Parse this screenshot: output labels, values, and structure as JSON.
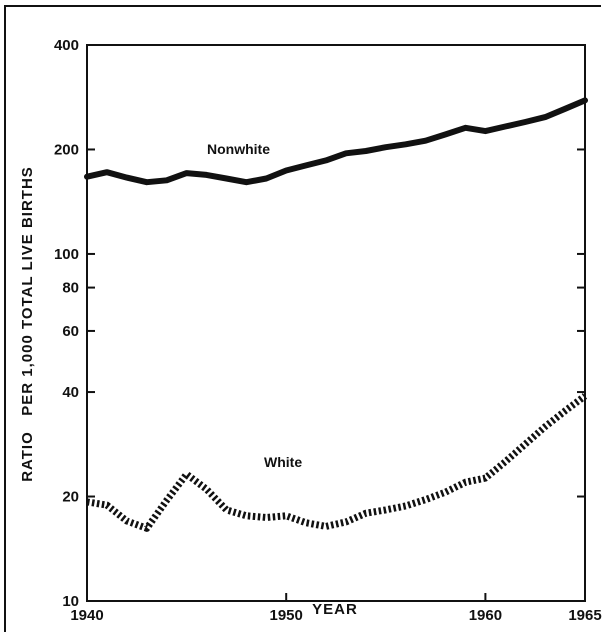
{
  "chart_data": {
    "type": "line",
    "title": "",
    "xlabel": "YEAR",
    "ylabel": "RATIO   PER 1,000 TOTAL LIVE BIRTHS",
    "yscale": "log",
    "xlim": [
      1940,
      1965
    ],
    "ylim": [
      10,
      400
    ],
    "x_ticks": [
      1940,
      1950,
      1960,
      1965
    ],
    "x_tick_labels": [
      "1940",
      "1950",
      "1960",
      "1965"
    ],
    "y_ticks": [
      10,
      20,
      40,
      60,
      80,
      100,
      200,
      400
    ],
    "y_tick_labels": [
      "10",
      "20",
      "40",
      "60",
      "80",
      "100",
      "200",
      "400"
    ],
    "grid": false,
    "colors": {
      "line": "#111111",
      "background": "#ffffff"
    },
    "series": [
      {
        "name": "Nonwhite",
        "style": "solid",
        "x": [
          1940,
          1941,
          1942,
          1943,
          1944,
          1945,
          1946,
          1947,
          1948,
          1949,
          1950,
          1951,
          1952,
          1953,
          1954,
          1955,
          1956,
          1957,
          1958,
          1959,
          1960,
          1961,
          1962,
          1963,
          1964,
          1965
        ],
        "values": [
          167,
          172,
          166,
          161,
          163,
          171,
          169,
          165,
          161,
          165,
          174,
          180,
          186,
          195,
          198,
          203,
          207,
          212,
          221,
          231,
          226,
          233,
          240,
          248,
          262,
          277
        ]
      },
      {
        "name": "White",
        "style": "dotted",
        "x": [
          1940,
          1941,
          1942,
          1943,
          1944,
          1945,
          1946,
          1947,
          1948,
          1949,
          1950,
          1951,
          1952,
          1953,
          1954,
          1955,
          1956,
          1957,
          1958,
          1959,
          1960,
          1961,
          1962,
          1963,
          1964,
          1965
        ],
        "values": [
          19.3,
          18.9,
          17.0,
          16.2,
          19.5,
          23.2,
          21.0,
          18.3,
          17.6,
          17.4,
          17.6,
          16.8,
          16.4,
          16.9,
          17.9,
          18.3,
          18.8,
          19.6,
          20.6,
          22.0,
          22.6,
          25.2,
          28.3,
          31.8,
          35.3,
          39.0
        ]
      }
    ]
  }
}
